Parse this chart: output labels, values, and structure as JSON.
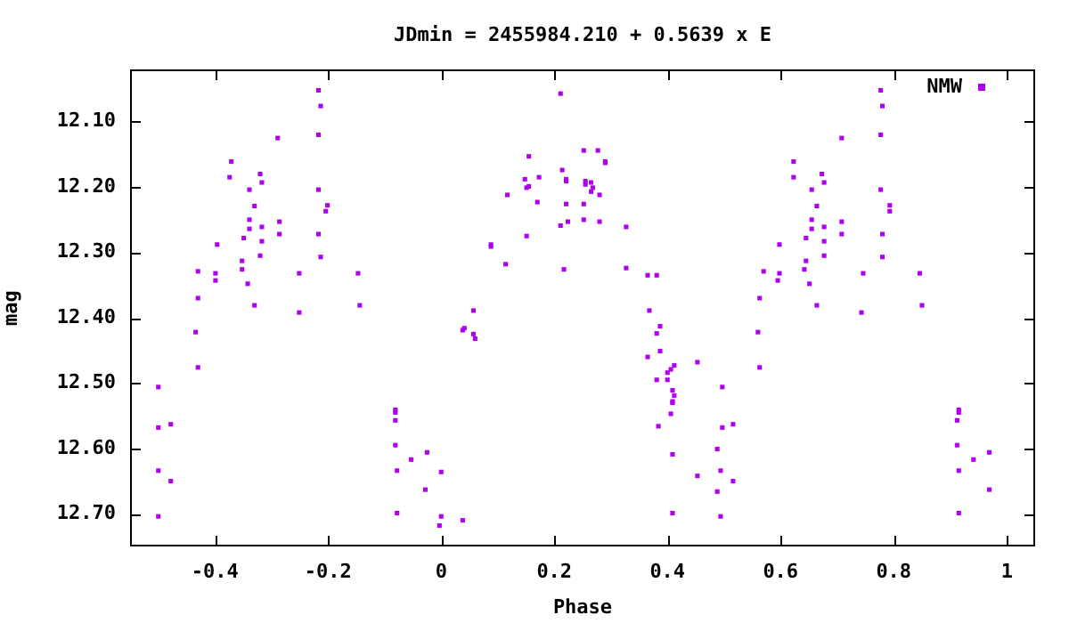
{
  "chart_data": {
    "type": "scatter",
    "title": "JDmin = 2455984.210 + 0.5639 x E",
    "xlabel": "Phase",
    "ylabel": "mag",
    "xlim": [
      -0.55,
      1.05
    ],
    "xticks": [
      -0.4,
      -0.2,
      0,
      0.2,
      0.4,
      0.6,
      0.8,
      1
    ],
    "ylim": [
      12.75,
      12.02
    ],
    "yticks": [
      {
        "value": 12.1,
        "label": "12.10"
      },
      {
        "value": 12.2,
        "label": "12.20"
      },
      {
        "value": 12.3,
        "label": "12.30"
      },
      {
        "value": 12.4,
        "label": "12.40"
      },
      {
        "value": 12.5,
        "label": "12.50"
      },
      {
        "value": 12.6,
        "label": "12.60"
      },
      {
        "value": 12.7,
        "label": "12.70"
      }
    ],
    "grid": false,
    "legend": "top right",
    "marker": "square",
    "series": [
      {
        "name": "NMW",
        "color": "#b000f0",
        "x": [
          -0.5,
          -0.5,
          -0.478,
          -0.5,
          -0.478,
          -0.5,
          -0.43,
          -0.43,
          -0.434,
          -0.43,
          -0.396,
          -0.399,
          -0.399,
          -0.371,
          -0.374,
          -0.339,
          -0.33,
          -0.339,
          -0.339,
          -0.349,
          -0.352,
          -0.352,
          -0.342,
          -0.33,
          -0.32,
          -0.317,
          -0.317,
          -0.317,
          -0.32,
          -0.289,
          -0.286,
          -0.286,
          -0.251,
          -0.251,
          -0.217,
          -0.213,
          -0.217,
          -0.217,
          -0.201,
          -0.204,
          -0.217,
          -0.213,
          -0.147,
          -0.144,
          -0.081,
          -0.081,
          -0.081,
          -0.081,
          -0.078,
          -0.078,
          -0.053,
          -0.025,
          -0.028,
          0.0,
          0.0,
          -0.003,
          0.038,
          0.057,
          0.038,
          0.041,
          0.057,
          0.06,
          0.088,
          0.088,
          0.114,
          0.151,
          0.117,
          0.148,
          0.151,
          0.155,
          0.155,
          0.173,
          0.17,
          0.211,
          0.214,
          0.221,
          0.221,
          0.221,
          0.211,
          0.224,
          0.217,
          0.252,
          0.277,
          0.29,
          0.29,
          0.255,
          0.255,
          0.265,
          0.268,
          0.265,
          0.28,
          0.252,
          0.252,
          0.28,
          0.327,
          0.327,
          0.365,
          0.381,
          0.368,
          0.387,
          0.381,
          0.387,
          0.365,
          0.412,
          0.406,
          0.4,
          0.4,
          0.381,
          0.409,
          0.412,
          0.409,
          0.409,
          0.406,
          0.384,
          0.409,
          0.409,
          0.453,
          0.453,
          0.497,
          0.497,
          0.488,
          0.494,
          0.488,
          0.494,
          0.516,
          0.516,
          0.563,
          0.56,
          0.563,
          0.57,
          0.598,
          0.595,
          0.598,
          0.623,
          0.623,
          0.655,
          0.664,
          0.655,
          0.655,
          0.645,
          0.645,
          0.642,
          0.651,
          0.664,
          0.673,
          0.677,
          0.677,
          0.677,
          0.677,
          0.708,
          0.708,
          0.708,
          0.746,
          0.743,
          0.777,
          0.78,
          0.777,
          0.777,
          0.793,
          0.793,
          0.78,
          0.78,
          0.846,
          0.85,
          0.915,
          0.915,
          0.912,
          0.912,
          0.915,
          0.915,
          0.941,
          0.969,
          0.969
        ],
        "values": [
          12.506,
          12.568,
          12.563,
          12.634,
          12.65,
          12.704,
          12.329,
          12.37,
          12.422,
          12.476,
          12.288,
          12.332,
          12.343,
          12.161,
          12.185,
          12.204,
          12.229,
          12.25,
          12.264,
          12.278,
          12.313,
          12.326,
          12.348,
          12.381,
          12.18,
          12.193,
          12.261,
          12.283,
          12.305,
          12.125,
          12.253,
          12.272,
          12.332,
          12.392,
          12.052,
          12.076,
          12.12,
          12.204,
          12.228,
          12.237,
          12.272,
          12.307,
          12.332,
          12.381,
          12.541,
          12.545,
          12.557,
          12.595,
          12.634,
          12.699,
          12.617,
          12.606,
          12.663,
          12.636,
          12.704,
          12.718,
          12.71,
          12.389,
          12.419,
          12.416,
          12.425,
          12.432,
          12.288,
          12.291,
          12.318,
          12.275,
          12.212,
          12.188,
          12.201,
          12.199,
          12.153,
          12.185,
          12.223,
          12.057,
          12.174,
          12.188,
          12.191,
          12.226,
          12.259,
          12.253,
          12.326,
          12.144,
          12.144,
          12.161,
          12.163,
          12.191,
          12.196,
          12.193,
          12.201,
          12.207,
          12.212,
          12.226,
          12.25,
          12.253,
          12.261,
          12.324,
          12.335,
          12.335,
          12.389,
          12.413,
          12.424,
          12.451,
          12.46,
          12.473,
          12.479,
          12.484,
          12.495,
          12.495,
          12.511,
          12.519,
          12.528,
          12.53,
          12.547,
          12.566,
          12.609,
          12.699,
          12.468,
          12.642,
          12.506,
          12.568,
          12.601,
          12.634,
          12.666,
          12.704,
          12.563,
          12.65,
          12.37,
          12.422,
          12.476,
          12.329,
          12.288,
          12.343,
          12.332,
          12.161,
          12.185,
          12.204,
          12.229,
          12.25,
          12.264,
          12.278,
          12.313,
          12.326,
          12.348,
          12.381,
          12.18,
          12.193,
          12.261,
          12.283,
          12.305,
          12.125,
          12.253,
          12.272,
          12.332,
          12.392,
          12.052,
          12.076,
          12.12,
          12.204,
          12.228,
          12.237,
          12.272,
          12.307,
          12.332,
          12.381,
          12.541,
          12.545,
          12.557,
          12.595,
          12.634,
          12.699,
          12.617,
          12.606,
          12.663
        ]
      }
    ]
  }
}
